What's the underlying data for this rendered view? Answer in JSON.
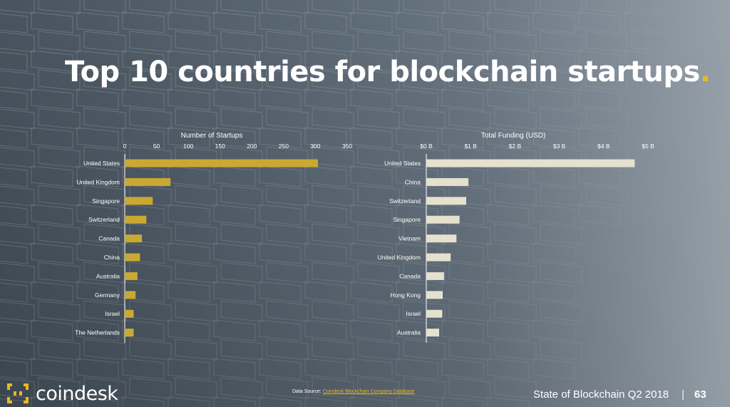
{
  "title": {
    "text": "Top 10 countries for blockchain startups",
    "accent": "."
  },
  "colors": {
    "startups_bar": "#c9a931",
    "funding_bar": "#e4e1cf",
    "accent": "#e8b923",
    "text": "#ffffff"
  },
  "chart_data": [
    {
      "type": "bar",
      "orientation": "horizontal",
      "title": "Number of Startups",
      "categories": [
        "United States",
        "United Kingdom",
        "Singapore",
        "Switzerland",
        "Canada",
        "China",
        "Australia",
        "Germany",
        "Israel",
        "The Netherlands"
      ],
      "values": [
        304,
        72,
        44,
        34,
        27,
        24,
        20,
        17,
        14,
        14
      ],
      "xlim": [
        0,
        350
      ],
      "ticks": [
        "0",
        "50",
        "100",
        "150",
        "200",
        "250",
        "300",
        "350"
      ],
      "tick_values": [
        0,
        50,
        100,
        150,
        200,
        250,
        300,
        350
      ],
      "axis_position": "top",
      "grid": false
    },
    {
      "type": "bar",
      "orientation": "horizontal",
      "title": "Total Funding (USD)",
      "categories": [
        "United States",
        "China",
        "Switzerland",
        "Singapore",
        "Vietnam",
        "United Kingdom",
        "Canada",
        "Hong Kong",
        "Israel",
        "Australia"
      ],
      "values": [
        4.7,
        0.95,
        0.9,
        0.75,
        0.68,
        0.55,
        0.4,
        0.37,
        0.36,
        0.29
      ],
      "unit": "B USD",
      "xlim": [
        0,
        5
      ],
      "ticks": [
        "$0 B",
        "$1 B",
        "$2 B",
        "$3 B",
        "$4 B",
        "$5 B"
      ],
      "tick_values": [
        0,
        1,
        2,
        3,
        4,
        5
      ],
      "axis_position": "top",
      "grid": false
    }
  ],
  "footer": {
    "logo_text": "coindesk",
    "source_label": "Data Source:",
    "source_link": "Coindesk Blockchain Company Database",
    "report_title": "State of Blockchain Q2 2018",
    "separator": "|",
    "page_number": "63"
  }
}
